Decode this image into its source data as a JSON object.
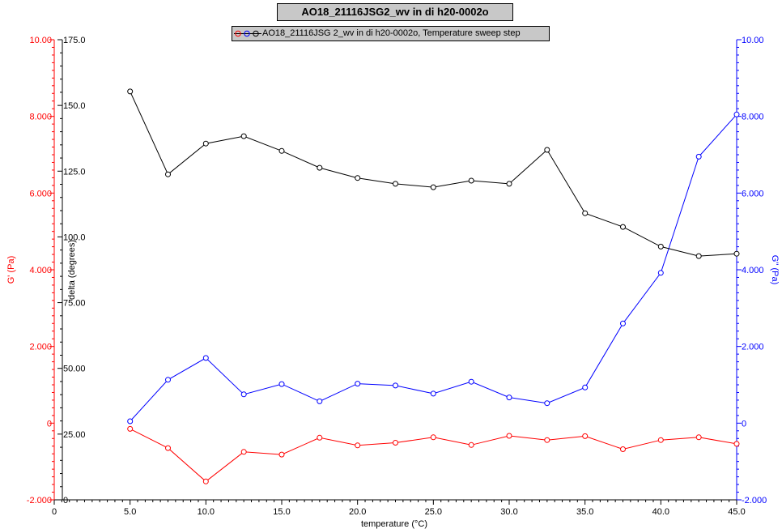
{
  "chart_data": {
    "type": "line",
    "title": "AO18_21116JSG2_wv in di h20-0002o",
    "legend": "AO18_21116JSG 2_wv in di h20-0002o, Temperature sweep step",
    "xlabel": "temperature (°C)",
    "ylabel_left": "G' (Pa)",
    "ylabel_delta": "delta (degrees)",
    "ylabel_right": "G'' (Pa)",
    "xlim": [
      0,
      45
    ],
    "ylim_left": [
      -2,
      10
    ],
    "ylim_delta": [
      0,
      175
    ],
    "ylim_right": [
      -2,
      10
    ],
    "x_ticks": [
      "0",
      "5.0",
      "10.0",
      "15.0",
      "20.0",
      "25.0",
      "30.0",
      "35.0",
      "40.0",
      "45.0"
    ],
    "left_ticks": [
      "-2.000",
      "0",
      "2.000",
      "4.000",
      "6.000",
      "8.000",
      "10.00"
    ],
    "delta_ticks": [
      "0",
      "25.00",
      "50.00",
      "75.00",
      "100.0",
      "125.0",
      "150.0",
      "175.0"
    ],
    "right_ticks": [
      "-2.000",
      "0",
      "2.000",
      "4.000",
      "6.000",
      "8.000",
      "10.00"
    ],
    "x": [
      5.0,
      7.5,
      10.0,
      12.5,
      15.0,
      17.5,
      20.0,
      22.5,
      25.0,
      27.5,
      30.0,
      32.5,
      35.0,
      37.5,
      40.0,
      42.5,
      45.0
    ],
    "series": [
      {
        "name": "G'",
        "axis": "left",
        "color": "#ff0000",
        "values": [
          -0.15,
          -0.65,
          -1.52,
          -0.75,
          -0.82,
          -0.38,
          -0.58,
          -0.51,
          -0.37,
          -0.57,
          -0.33,
          -0.44,
          -0.34,
          -0.68,
          -0.44,
          -0.37,
          -0.54
        ]
      },
      {
        "name": "G''",
        "axis": "right",
        "color": "#0000ff",
        "values": [
          0.05,
          1.13,
          1.7,
          0.75,
          1.02,
          0.57,
          1.03,
          0.98,
          0.77,
          1.08,
          0.67,
          0.52,
          0.93,
          2.6,
          3.92,
          6.95,
          8.05
        ]
      },
      {
        "name": "delta",
        "axis": "delta",
        "color": "#000000",
        "values": [
          155.3,
          123.8,
          135.5,
          138.3,
          132.7,
          126.3,
          122.4,
          120.2,
          118.9,
          121.4,
          120.2,
          133.1,
          109.0,
          103.8,
          96.3,
          92.7,
          93.6
        ]
      }
    ],
    "grid": false,
    "legend_position": "top-center"
  }
}
